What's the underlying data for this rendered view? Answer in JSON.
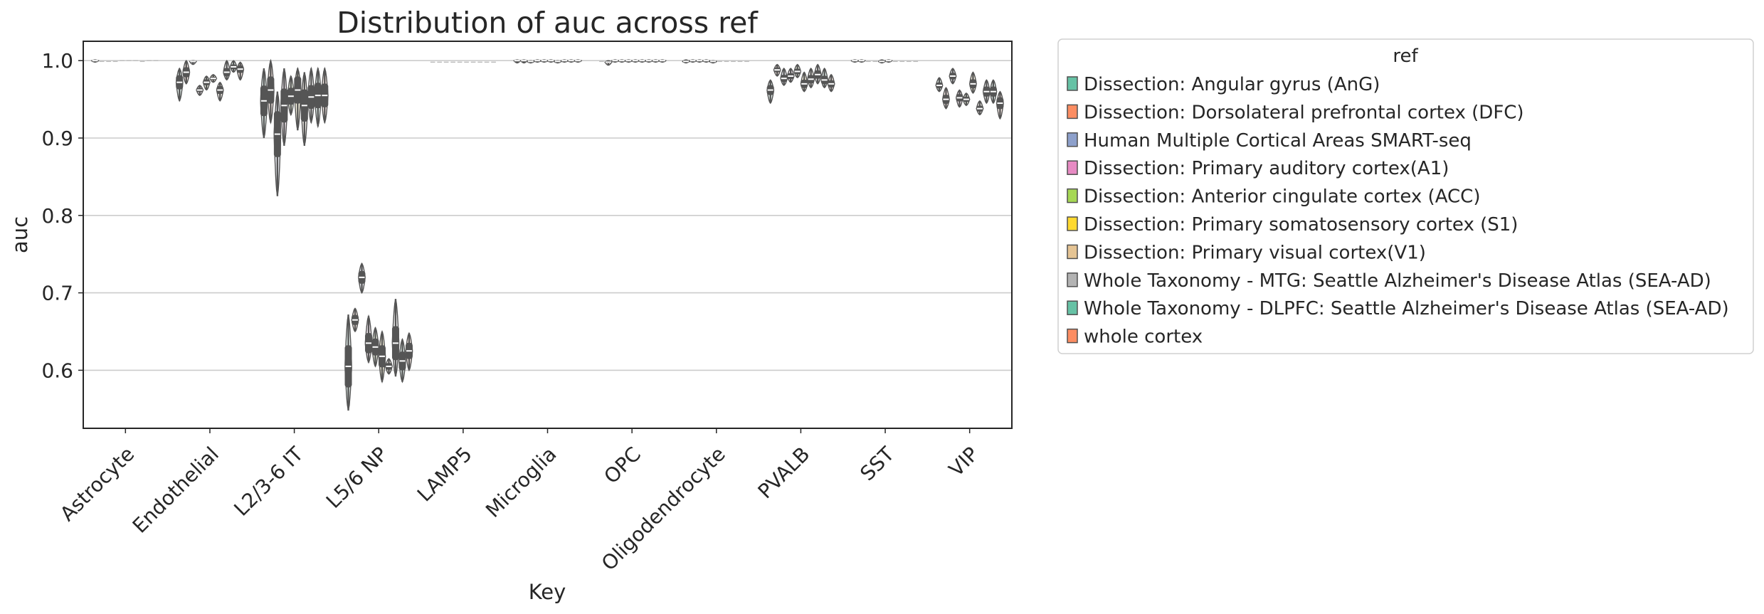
{
  "chart_data": {
    "type": "violin",
    "title": "Distribution of auc across ref",
    "xlabel": "Key",
    "ylabel": "auc",
    "ylim": [
      0.525,
      1.025
    ],
    "yticks": [
      0.6,
      0.7,
      0.8,
      0.9,
      1.0
    ],
    "ytick_labels": [
      "0.6",
      "0.7",
      "0.8",
      "0.9",
      "1.0"
    ],
    "grid": "horizontal",
    "legend_title": "ref",
    "legend_position": "outside-right",
    "categories": [
      "Astrocyte",
      "Endothelial",
      "L2/3-6 IT",
      "L5/6 NP",
      "LAMP5",
      "Microglia",
      "OPC",
      "Oligodendrocyte",
      "PVALB",
      "SST",
      "VIP"
    ],
    "series": [
      {
        "name": "Dissection: Angular gyrus (AnG)",
        "color": "#66c2a5"
      },
      {
        "name": "Dissection: Dorsolateral prefrontal cortex (DFC)",
        "color": "#fc8d62"
      },
      {
        "name": "Human Multiple Cortical Areas SMART-seq",
        "color": "#8da0cb"
      },
      {
        "name": "Dissection: Primary auditory cortex(A1)",
        "color": "#e78ac3"
      },
      {
        "name": "Dissection: Anterior cingulate cortex (ACC)",
        "color": "#a6d854"
      },
      {
        "name": "Dissection: Primary somatosensory cortex (S1)",
        "color": "#ffd92f"
      },
      {
        "name": "Dissection: Primary visual cortex(V1)",
        "color": "#e5c494"
      },
      {
        "name": "Whole Taxonomy - MTG: Seattle Alzheimer's Disease Atlas (SEA-AD)",
        "color": "#b3b3b3"
      },
      {
        "name": "Whole Taxonomy - DLPFC: Seattle Alzheimer's Disease Atlas (SEA-AD)",
        "color": "#66c2a5"
      },
      {
        "name": "whole cortex",
        "color": "#fc8d62"
      }
    ],
    "medians": [
      [
        1.0,
        0.999,
        0.999,
        0.999,
        1.0,
        1.0,
        1.0,
        0.999,
        1.0,
        1.0
      ],
      [
        0.972,
        0.985,
        0.999,
        0.962,
        0.972,
        0.977,
        0.962,
        0.985,
        0.992,
        0.989
      ],
      [
        0.948,
        0.962,
        0.905,
        0.942,
        0.954,
        0.962,
        0.942,
        0.953,
        0.955,
        0.955
      ],
      [
        0.605,
        0.665,
        0.72,
        0.635,
        0.63,
        0.618,
        0.605,
        0.635,
        0.612,
        0.625
      ],
      [
        0.998,
        0.998,
        0.998,
        0.998,
        0.998,
        0.998,
        0.998,
        0.998,
        0.998,
        0.998
      ],
      [
        1.0,
        1.0,
        0.999,
        1.0,
        1.0,
        1.0,
        0.999,
        1.0,
        1.0,
        1.0
      ],
      [
        0.999,
        0.998,
        1.0,
        1.0,
        1.0,
        1.0,
        1.0,
        1.0,
        1.0,
        1.0
      ],
      [
        0.999,
        1.0,
        1.0,
        1.0,
        0.999,
        0.999,
        0.999,
        0.999,
        0.999,
        0.999
      ],
      [
        0.962,
        0.988,
        0.977,
        0.98,
        0.986,
        0.97,
        0.976,
        0.982,
        0.975,
        0.97
      ],
      [
        1.0,
        1.0,
        0.999,
        0.999,
        0.999,
        1.0,
        0.999,
        0.999,
        0.999,
        0.999
      ],
      [
        0.968,
        0.95,
        0.98,
        0.952,
        0.95,
        0.97,
        0.938,
        0.96,
        0.96,
        0.945
      ]
    ],
    "ranges": [
      [
        [
          0.998,
          1.001
        ],
        [
          0.998,
          1.0
        ],
        [
          0.998,
          1.0
        ],
        [
          0.998,
          1.0
        ],
        [
          0.999,
          1.001
        ],
        [
          0.999,
          1.001
        ],
        [
          0.999,
          1.001
        ],
        [
          0.998,
          1.0
        ],
        [
          0.999,
          1.001
        ],
        [
          0.999,
          1.001
        ]
      ],
      [
        [
          0.948,
          0.99
        ],
        [
          0.97,
          1.0
        ],
        [
          0.995,
          1.0
        ],
        [
          0.955,
          0.968
        ],
        [
          0.962,
          0.98
        ],
        [
          0.972,
          0.982
        ],
        [
          0.948,
          0.972
        ],
        [
          0.975,
          1.0
        ],
        [
          0.985,
          1.0
        ],
        [
          0.975,
          0.998
        ]
      ],
      [
        [
          0.9,
          0.99
        ],
        [
          0.92,
          1.0
        ],
        [
          0.825,
          0.96
        ],
        [
          0.89,
          0.99
        ],
        [
          0.93,
          0.98
        ],
        [
          0.91,
          0.99
        ],
        [
          0.89,
          0.985
        ],
        [
          0.92,
          0.99
        ],
        [
          0.915,
          0.99
        ],
        [
          0.92,
          0.99
        ]
      ],
      [
        [
          0.548,
          0.672
        ],
        [
          0.65,
          0.68
        ],
        [
          0.7,
          0.738
        ],
        [
          0.61,
          0.67
        ],
        [
          0.605,
          0.655
        ],
        [
          0.585,
          0.65
        ],
        [
          0.595,
          0.615
        ],
        [
          0.592,
          0.692
        ],
        [
          0.585,
          0.64
        ],
        [
          0.6,
          0.648
        ]
      ],
      [
        [
          0.997,
          0.999
        ],
        [
          0.997,
          0.999
        ],
        [
          0.997,
          0.999
        ],
        [
          0.997,
          0.999
        ],
        [
          0.997,
          0.999
        ],
        [
          0.997,
          0.999
        ],
        [
          0.997,
          0.999
        ],
        [
          0.997,
          0.999
        ],
        [
          0.997,
          0.999
        ],
        [
          0.997,
          0.999
        ]
      ],
      [
        [
          0.997,
          1.001
        ],
        [
          0.997,
          1.001
        ],
        [
          0.997,
          1.0
        ],
        [
          0.998,
          1.001
        ],
        [
          0.998,
          1.001
        ],
        [
          0.998,
          1.001
        ],
        [
          0.997,
          1.0
        ],
        [
          0.998,
          1.001
        ],
        [
          0.998,
          1.001
        ],
        [
          0.998,
          1.001
        ]
      ],
      [
        [
          0.998,
          1.0
        ],
        [
          0.994,
          1.0
        ],
        [
          0.998,
          1.001
        ],
        [
          0.998,
          1.001
        ],
        [
          0.998,
          1.001
        ],
        [
          0.998,
          1.001
        ],
        [
          0.998,
          1.001
        ],
        [
          0.998,
          1.001
        ],
        [
          0.998,
          1.001
        ],
        [
          0.998,
          1.001
        ]
      ],
      [
        [
          0.997,
          1.001
        ],
        [
          0.998,
          1.001
        ],
        [
          0.998,
          1.001
        ],
        [
          0.998,
          1.001
        ],
        [
          0.997,
          1.0
        ],
        [
          0.998,
          1.0
        ],
        [
          0.998,
          1.0
        ],
        [
          0.998,
          1.0
        ],
        [
          0.998,
          1.0
        ],
        [
          0.998,
          1.0
        ]
      ],
      [
        [
          0.945,
          0.975
        ],
        [
          0.98,
          0.995
        ],
        [
          0.968,
          0.99
        ],
        [
          0.972,
          0.99
        ],
        [
          0.978,
          0.995
        ],
        [
          0.96,
          0.985
        ],
        [
          0.965,
          0.99
        ],
        [
          0.97,
          0.995
        ],
        [
          0.965,
          0.99
        ],
        [
          0.96,
          0.982
        ]
      ],
      [
        [
          0.998,
          1.001
        ],
        [
          0.998,
          1.001
        ],
        [
          0.998,
          1.0
        ],
        [
          0.998,
          1.0
        ],
        [
          0.997,
          1.001
        ],
        [
          0.998,
          1.001
        ],
        [
          0.998,
          1.0
        ],
        [
          0.998,
          1.0
        ],
        [
          0.998,
          1.0
        ],
        [
          0.998,
          1.0
        ]
      ],
      [
        [
          0.96,
          0.978
        ],
        [
          0.938,
          0.965
        ],
        [
          0.97,
          0.99
        ],
        [
          0.94,
          0.962
        ],
        [
          0.942,
          0.958
        ],
        [
          0.958,
          0.985
        ],
        [
          0.93,
          0.948
        ],
        [
          0.945,
          0.975
        ],
        [
          0.945,
          0.975
        ],
        [
          0.925,
          0.96
        ]
      ]
    ]
  }
}
